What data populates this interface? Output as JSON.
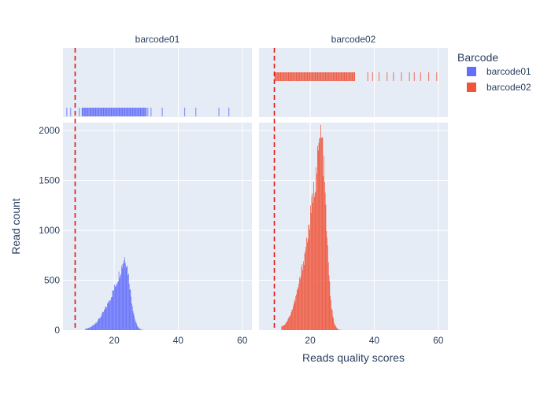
{
  "chart_data": {
    "type": "histogram",
    "xlabel": "Reads quality scores",
    "ylabel": "Read count",
    "legend": {
      "title": "Barcode",
      "position": "right",
      "entries": [
        {
          "name": "barcode01",
          "color": "#636efa"
        },
        {
          "name": "barcode02",
          "color": "#ef553b"
        }
      ]
    },
    "xlim": [
      4,
      63
    ],
    "ylim": [
      0,
      2080
    ],
    "x_ticks": [
      "20",
      "40",
      "60"
    ],
    "y_ticks": [
      "0",
      "500",
      "1000",
      "1500",
      "2000"
    ],
    "grid": true,
    "marginal": "rug",
    "facets": [
      {
        "title": "barcode01",
        "color": "#636efa",
        "threshold_line": 7.8,
        "rug_range": [
          5,
          56
        ],
        "rug_sparse": [
          5.2,
          6.4,
          9.1,
          30.5,
          31.5,
          35,
          42,
          45.5,
          52.7,
          55.8
        ],
        "histogram": {
          "bin_width": 0.2,
          "x_start": 9,
          "x_end": 34,
          "peak_x": 23.2,
          "peak_count": 730,
          "note": "distribution rising from ~11 to peak near 23, falling to ~0 by ~30"
        }
      },
      {
        "title": "barcode02",
        "color": "#ef553b",
        "threshold_line": 8.8,
        "rug_range": [
          6,
          60
        ],
        "rug_sparse": [
          38,
          39.5,
          41.5,
          44,
          46,
          48.5,
          51,
          52.5,
          54.5,
          57,
          59.5
        ],
        "histogram": {
          "bin_width": 0.2,
          "x_start": 9,
          "x_end": 36,
          "peak_x": 23.2,
          "peak_count": 1960,
          "note": "distribution rising from ~11 to peak near 23, falling to ~0 by ~30"
        }
      }
    ]
  },
  "colors": {
    "plot_bg": "#e5ecf6",
    "grid": "#ffffff",
    "threshold": "#e3130e"
  }
}
